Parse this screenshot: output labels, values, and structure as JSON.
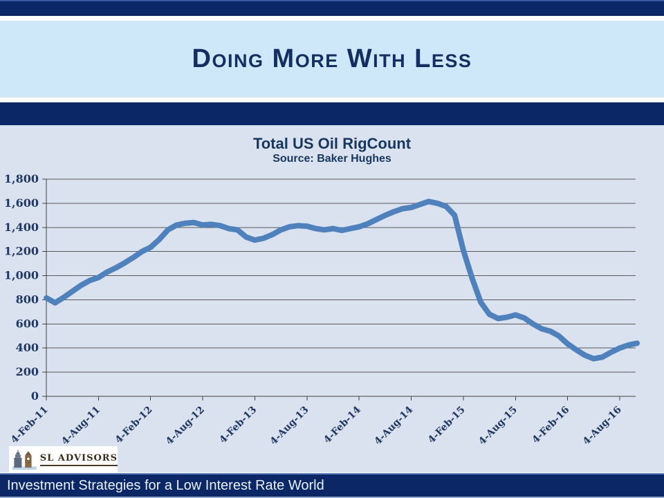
{
  "slide": {
    "title": "Doing More With Less",
    "footer": "Investment Strategies for a Low Interest Rate World",
    "logo_text": "SL ADVISORS",
    "colors": {
      "navy_bar": "#0C2766",
      "header_band": "#CEE8FA",
      "body_background": "#DBE2EF",
      "title_text": "#142E62",
      "chart_text": "#17375E",
      "axis_text": "#1F3864",
      "line": "#4F81BD",
      "footer_text": "#E8F1FB"
    }
  },
  "chart_data": {
    "type": "line",
    "title": "Total US Oil RigCount",
    "subtitle": "Source: Baker Hughes",
    "ylabel": "",
    "xlabel": "",
    "ylim": [
      0,
      1800
    ],
    "y_ticks": [
      0,
      200,
      400,
      600,
      800,
      1000,
      1200,
      1400,
      1600,
      1800
    ],
    "grid": true,
    "legend": "none",
    "line_color": "#4F81BD",
    "line_width": 8,
    "x_tick_labels": [
      "4-Feb-11",
      "4-Aug-11",
      "4-Feb-12",
      "4-Aug-12",
      "4-Feb-13",
      "4-Aug-13",
      "4-Feb-14",
      "4-Aug-14",
      "4-Feb-15",
      "4-Aug-15",
      "4-Feb-16",
      "4-Aug-16"
    ],
    "x_tick_month_indices": [
      0,
      6,
      12,
      18,
      24,
      30,
      36,
      42,
      48,
      54,
      60,
      66
    ],
    "series": [
      {
        "name": "Total US Oil Rig Count",
        "months": [
          "Feb-11",
          "Mar-11",
          "Apr-11",
          "May-11",
          "Jun-11",
          "Jul-11",
          "Aug-11",
          "Sep-11",
          "Oct-11",
          "Nov-11",
          "Dec-11",
          "Jan-12",
          "Feb-12",
          "Mar-12",
          "Apr-12",
          "May-12",
          "Jun-12",
          "Jul-12",
          "Aug-12",
          "Sep-12",
          "Oct-12",
          "Nov-12",
          "Dec-12",
          "Jan-13",
          "Feb-13",
          "Mar-13",
          "Apr-13",
          "May-13",
          "Jun-13",
          "Jul-13",
          "Aug-13",
          "Sep-13",
          "Oct-13",
          "Nov-13",
          "Dec-13",
          "Jan-14",
          "Feb-14",
          "Mar-14",
          "Apr-14",
          "May-14",
          "Jun-14",
          "Jul-14",
          "Aug-14",
          "Sep-14",
          "Oct-14",
          "Nov-14",
          "Dec-14",
          "Jan-15",
          "Feb-15",
          "Mar-15",
          "Apr-15",
          "May-15",
          "Jun-15",
          "Jul-15",
          "Aug-15",
          "Sep-15",
          "Oct-15",
          "Nov-15",
          "Dec-15",
          "Jan-16",
          "Feb-16",
          "Mar-16",
          "Apr-16",
          "May-16",
          "Jun-16",
          "Jul-16",
          "Aug-16",
          "Sep-16",
          "Oct-16"
        ],
        "values": [
          815,
          775,
          820,
          870,
          920,
          960,
          985,
          1030,
          1065,
          1105,
          1150,
          1200,
          1235,
          1300,
          1380,
          1420,
          1435,
          1440,
          1420,
          1425,
          1415,
          1390,
          1380,
          1320,
          1295,
          1310,
          1340,
          1380,
          1405,
          1415,
          1410,
          1390,
          1380,
          1390,
          1375,
          1390,
          1405,
          1430,
          1465,
          1500,
          1530,
          1555,
          1565,
          1590,
          1615,
          1600,
          1575,
          1500,
          1210,
          980,
          780,
          680,
          645,
          655,
          675,
          650,
          600,
          560,
          540,
          500,
          435,
          385,
          340,
          312,
          325,
          365,
          400,
          425,
          440
        ]
      }
    ]
  }
}
